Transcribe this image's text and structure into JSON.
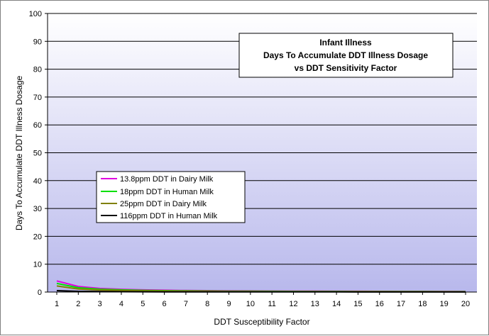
{
  "chart_data": {
    "type": "line",
    "title": [
      "Infant Illness",
      "Days To Accumulate DDT Illness Dosage",
      "vs DDT Sensitivity Factor"
    ],
    "xlabel": "DDT Susceptibility Factor",
    "ylabel": "Days To Accumulate DDT Illness Dosage",
    "x": [
      1,
      2,
      3,
      4,
      5,
      6,
      7,
      8,
      9,
      10,
      11,
      12,
      13,
      14,
      15,
      16,
      17,
      18,
      19,
      20
    ],
    "ylim": [
      0,
      100
    ],
    "yticks": [
      0,
      10,
      20,
      30,
      40,
      50,
      60,
      70,
      80,
      90,
      100
    ],
    "grid": true,
    "legend_position": "left-middle",
    "series": [
      {
        "name": "13.8ppm DDT in Dairy Milk",
        "color": "#e000e0",
        "values": [
          4.0,
          2.0,
          1.3,
          1.0,
          0.8,
          0.67,
          0.57,
          0.5,
          0.44,
          0.4,
          0.36,
          0.33,
          0.31,
          0.29,
          0.27,
          0.25,
          0.24,
          0.22,
          0.21,
          0.2
        ]
      },
      {
        "name": "18ppm DDT in Human Milk",
        "color": "#00e000",
        "values": [
          3.1,
          1.55,
          1.03,
          0.78,
          0.62,
          0.52,
          0.44,
          0.39,
          0.34,
          0.31,
          0.28,
          0.26,
          0.24,
          0.22,
          0.21,
          0.19,
          0.18,
          0.17,
          0.16,
          0.16
        ]
      },
      {
        "name": "25ppm DDT in Dairy Milk",
        "color": "#808000",
        "values": [
          2.2,
          1.1,
          0.73,
          0.55,
          0.44,
          0.37,
          0.31,
          0.28,
          0.24,
          0.22,
          0.2,
          0.18,
          0.17,
          0.16,
          0.15,
          0.14,
          0.13,
          0.12,
          0.12,
          0.11
        ]
      },
      {
        "name": "116ppm DDT in Human Milk",
        "color": "#000000",
        "values": [
          0.5,
          0.25,
          0.17,
          0.13,
          0.1,
          0.08,
          0.07,
          0.06,
          0.06,
          0.05,
          0.05,
          0.04,
          0.04,
          0.04,
          0.03,
          0.03,
          0.03,
          0.03,
          0.03,
          0.03
        ]
      }
    ]
  },
  "colors": {
    "plot_top": "#ffffff",
    "plot_bottom": "#b8b8ec",
    "gridline": "#000000"
  }
}
